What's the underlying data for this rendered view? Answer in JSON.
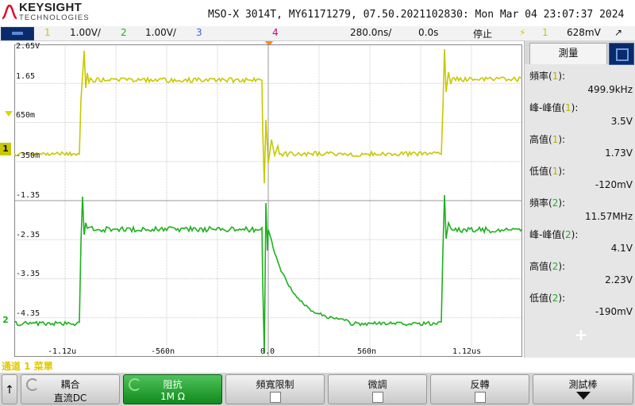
{
  "header": {
    "brand": "KEYSIGHT",
    "brand_sub": "TECHNOLOGIES",
    "device_title": "MSO-X 3014T, MY61171279, 07.50.2021102830: Mon Mar 04 23:07:37 2024"
  },
  "channel_bar": {
    "ch1_num": "1",
    "ch1_scale": "1.00V/",
    "ch2_num": "2",
    "ch2_scale": "1.00V/",
    "ch3_num": "3",
    "ch4_num": "4",
    "timebase": "280.0ns/",
    "delay": "0.0s",
    "run_state": "停止",
    "trigger_icon": "trigger-edge-icon",
    "trigger_source": "1",
    "trigger_level": "628mV"
  },
  "plot": {
    "y_ticks_ch1": [
      "2.65V",
      "1.65",
      "650m",
      "-350m"
    ],
    "y_ticks_ch2": [
      "-1.35",
      "-2.35",
      "-3.35",
      "-4.35"
    ],
    "x_ticks": [
      "-1.12u",
      "-560n",
      "0.0",
      "560n",
      "1.12us"
    ],
    "marker1": "1",
    "marker2": "2",
    "colors": {
      "ch1": "#c8c800",
      "ch2": "#1eb01e",
      "grid": "#c8c8c8",
      "trigger": "#ff8a1a"
    }
  },
  "side_panel": {
    "tab_label": "測量",
    "measurements": [
      {
        "name": "頻率",
        "ch": "1",
        "value": "499.9kHz"
      },
      {
        "name": "峰-峰值",
        "ch": "1",
        "value": "3.5V"
      },
      {
        "name": "高值",
        "ch": "1",
        "value": "1.73V"
      },
      {
        "name": "低值",
        "ch": "1",
        "value": "-120mV"
      },
      {
        "name": "頻率",
        "ch": "2",
        "value": "11.57MHz"
      },
      {
        "name": "峰-峰值",
        "ch": "2",
        "value": "4.1V"
      },
      {
        "name": "高值",
        "ch": "2",
        "value": "2.23V"
      },
      {
        "name": "低值",
        "ch": "2",
        "value": "-190mV"
      }
    ],
    "add_label": "+"
  },
  "status_line": "通道 1 菜單",
  "softkeys": {
    "back_label": "↑",
    "coupling_title": "耦合",
    "coupling_value": "直流DC",
    "impedance_title": "阻抗",
    "impedance_value": "1M Ω",
    "bw_limit_title": "頻寬限制",
    "fine_title": "微調",
    "invert_title": "反轉",
    "probe_title": "測試棒"
  }
}
